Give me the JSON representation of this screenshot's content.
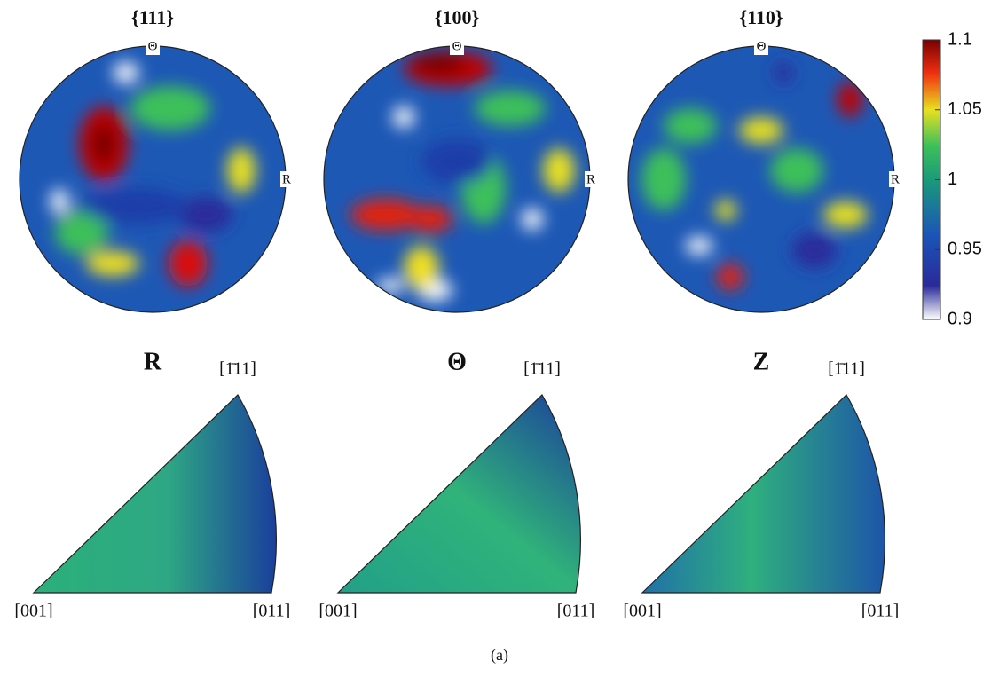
{
  "pole_figures": [
    {
      "title": "{111}",
      "top_label": "Θ",
      "right_label": "R"
    },
    {
      "title": "{100}",
      "top_label": "Θ",
      "right_label": "R"
    },
    {
      "title": "{110}",
      "top_label": "Θ",
      "right_label": "R"
    }
  ],
  "colorbar": {
    "lim": [
      0.9,
      1.1
    ],
    "ticks": [
      0.9,
      0.95,
      1,
      1.05,
      1.1
    ]
  },
  "inverse_pole_figures": [
    {
      "title": "R",
      "corners": [
        "[001]",
        "[011]",
        "[1̄11]"
      ]
    },
    {
      "title": "Θ",
      "corners": [
        "[001]",
        "[011]",
        "[1̄11]"
      ]
    },
    {
      "title": "Z",
      "corners": [
        "[001]",
        "[011]",
        "[1̄11]"
      ]
    }
  ],
  "caption": "(a)"
}
